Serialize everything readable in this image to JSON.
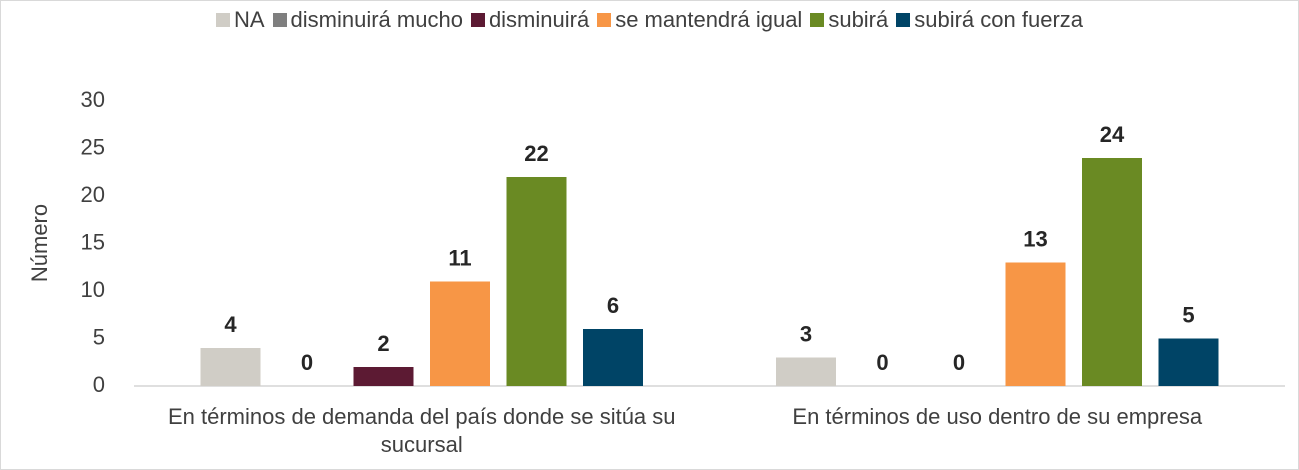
{
  "chart_data": {
    "type": "bar",
    "categories": [
      "En términos de demanda del país donde se sitúa su sucursal",
      "En términos de uso dentro de su empresa"
    ],
    "series": [
      {
        "name": "NA",
        "color": "#d0cdc6",
        "values": [
          4,
          3
        ]
      },
      {
        "name": "disminuirá mucho",
        "color": "#7f7f7f",
        "values": [
          0,
          0
        ]
      },
      {
        "name": "disminuirá",
        "color": "#5c1a33",
        "values": [
          2,
          0
        ]
      },
      {
        "name": "se mantendrá igual",
        "color": "#f79646",
        "values": [
          11,
          13
        ]
      },
      {
        "name": "subirá",
        "color": "#6a8a23",
        "values": [
          22,
          24
        ]
      },
      {
        "name": "subirá con fuerza",
        "color": "#004466",
        "values": [
          6,
          5
        ]
      }
    ],
    "y_label": "Número",
    "ylim": [
      0,
      30
    ],
    "yticks": [
      0,
      5,
      10,
      15,
      20,
      25,
      30
    ],
    "legend": "top",
    "grid": false
  }
}
